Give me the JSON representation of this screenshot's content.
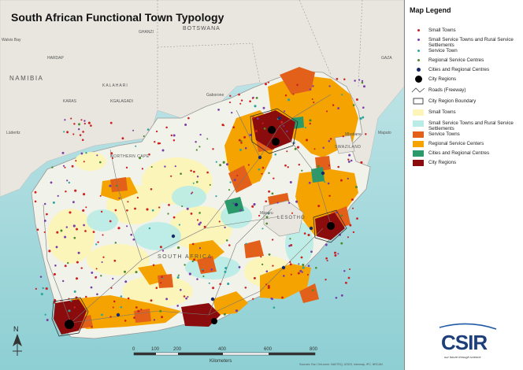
{
  "title": "South African Functional Town Typology",
  "legend": {
    "title": "Map Legend",
    "items": [
      {
        "label": "Small Towns",
        "kind": "dot",
        "color": "#cc2222",
        "size": 3
      },
      {
        "label": "Small Service Towns and Rural Service Settlements",
        "kind": "dot",
        "color": "#7a3da8",
        "size": 3
      },
      {
        "label": "Service Town",
        "kind": "dot",
        "color": "#2aa6a0",
        "size": 3
      },
      {
        "label": "Regional Service Centres",
        "kind": "dot",
        "color": "#4c8a2a",
        "size": 3
      },
      {
        "label": "Cities and Regional Centres",
        "kind": "dot",
        "color": "#1a2a66",
        "size": 5
      },
      {
        "label": "City Regions",
        "kind": "dot",
        "color": "#000000",
        "size": 9
      },
      {
        "label": "Roads (Freeway)",
        "kind": "road-icon"
      },
      {
        "label": "City Region Boundary",
        "kind": "boundary-icon"
      },
      {
        "label": "Small Towns",
        "kind": "swatch",
        "color": "#fdf6b8"
      },
      {
        "label": "Small Service Towns and Rural Service Settlements",
        "kind": "swatch",
        "color": "#b9ece6"
      },
      {
        "label": "Service Towns",
        "kind": "swatch",
        "color": "#e2601a"
      },
      {
        "label": "Regional Service Centers",
        "kind": "swatch",
        "color": "#f5a300"
      },
      {
        "label": "Cities and Regional Centres",
        "kind": "swatch",
        "color": "#2a9a6a"
      },
      {
        "label": "City Regions",
        "kind": "swatch",
        "color": "#8a0c0c"
      }
    ]
  },
  "map_labels": {
    "botswana": "BOTSWANA",
    "namibia": "NAMIBIA",
    "lesotho": "LESOTHO",
    "swaziland": "SWAZILAND",
    "south_africa": "SOUTH AFRICA",
    "northern_cape": "NORTHERN CAPE",
    "gaborone": "Gaborone",
    "mbabane": "Mbabane",
    "maputo": "Maputo",
    "maseru": "Maseru",
    "walvis_bay": "Walvis Bay",
    "luderitz": "Lüderitz",
    "kalahari": "KALAHARI",
    "ghanzi": "GHANZI",
    "hardap": "HARDAP",
    "karas": "KARAS",
    "gaza": "GAZA",
    "kgalagadi": "KGALAGADI"
  },
  "scale_bar": {
    "ticks": [
      "0",
      "100",
      "200",
      "400",
      "600",
      "800"
    ],
    "unit": "Kilometers"
  },
  "north_arrow": "N",
  "attribution": "Sources: Esri, DeLorme, NAVTEQ, USGS, Intermap, iPC, NRCAN",
  "logo": {
    "name": "CSIR",
    "tagline": "our future through science"
  },
  "colors": {
    "ocean": "#bfe3e6",
    "land_neutral": "#e9e6de",
    "sa_base": "#f3f4ee"
  }
}
